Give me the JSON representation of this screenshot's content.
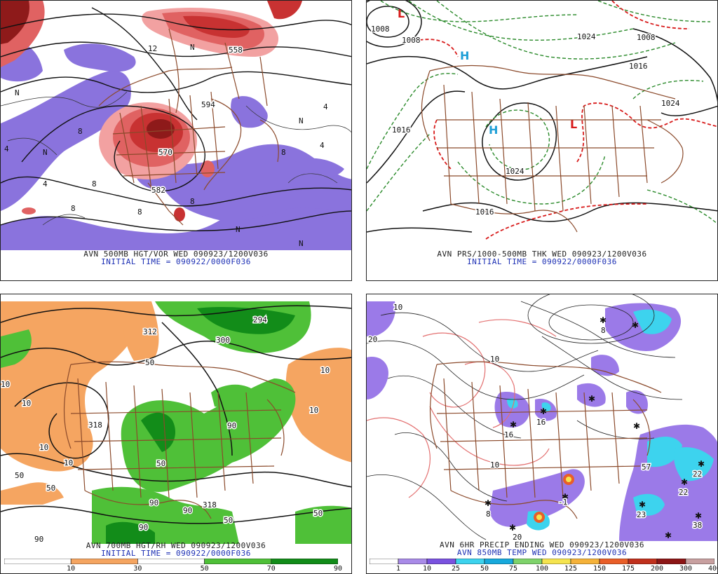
{
  "panels": {
    "p500": {
      "caption": "AVN 500MB HGT/VOR WED 090923/1200V036",
      "initial": "INITIAL TIME = 090922/0000F036",
      "contour_labels": [
        "8",
        "8",
        "8",
        "4",
        "4",
        "4",
        "4",
        "8",
        "8",
        "8",
        "12",
        "N",
        "N",
        "N",
        "N",
        "N",
        "N",
        "558",
        "594",
        "570",
        "582"
      ]
    },
    "pthk": {
      "caption": "AVN PRS/1000-500MB THK WED 090923/1200V036",
      "initial": "INITIAL TIME = 090922/0000F036",
      "contour_labels": [
        "1008",
        "1008",
        "1008",
        "1016",
        "1016",
        "1016",
        "1024",
        "1024",
        "1024"
      ],
      "high_symbol": "H",
      "low_symbol": "L"
    },
    "p700": {
      "caption": "AVN 700MB HGT/RH WED 090923/1200V036",
      "initial": "INITIAL TIME = 090922/0000F036",
      "contour_labels": [
        "10",
        "10",
        "10",
        "10",
        "10",
        "10",
        "50",
        "50",
        "50",
        "50",
        "50",
        "50",
        "90",
        "90",
        "90",
        "90",
        "90",
        "318",
        "318",
        "300",
        "294",
        "312"
      ],
      "colorbar_labels": [
        "10",
        "30",
        "50",
        "70",
        "90"
      ],
      "colorbar_colors": [
        "#ffffff",
        "#f5a561",
        "#ffffff",
        "#4fc038",
        "#128c19"
      ]
    },
    "precip": {
      "caption": "AVN 6HR PRECIP ENDING WED 090923/1200V036",
      "caption2": "AVN 850MB TEMP WED 090923/1200V036",
      "contour_labels": [
        "10",
        "10",
        "10",
        "20",
        "16",
        "16",
        "22",
        "22",
        "23",
        "38",
        "57",
        "-1",
        "8",
        "8",
        "20"
      ],
      "snow_symbol": "✱",
      "colorbar_labels": [
        "1",
        "10",
        "25",
        "50",
        "75",
        "100",
        "125",
        "150",
        "175",
        "200",
        "300",
        "400"
      ],
      "colorbar_colors": [
        "#ffffff",
        "#a98be8",
        "#7a52e0",
        "#3dd3ee",
        "#17a9dc",
        "#7fd36b",
        "#f5e44f",
        "#f5b23a",
        "#e95e28",
        "#c0301c",
        "#8c1515",
        "#c8a0a0"
      ]
    }
  },
  "colors": {
    "border": "#8b4a2b",
    "contour": "#111111",
    "vorticity_high": "#c83232",
    "vorticity_low": "#8a73dd",
    "rh_dry": "#f5a561",
    "rh_moist": "#4fc038",
    "thickness_cold": "#2a8a2a",
    "thickness_warm": "#d81b1b",
    "precip_light": "#9b7ae8",
    "precip_mod": "#3dd3ee",
    "temp_contour": "#e37070"
  }
}
